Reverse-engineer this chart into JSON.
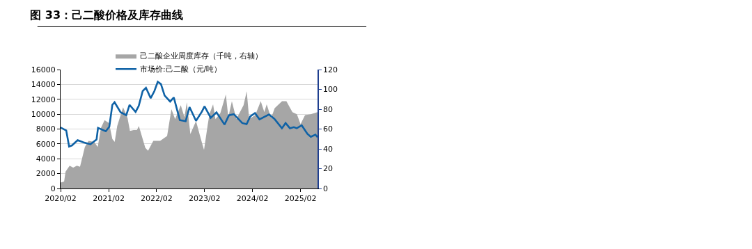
{
  "chart_data": {
    "type": "line",
    "title": "图 33：己二酸价格及库存曲线",
    "series": [
      {
        "name": "己二酸企业周度库存（千吨，右轴）",
        "type": "area",
        "axis": "y2",
        "color": "#a6a6a6",
        "x": [
          "2020-02-01",
          "2020-02-28",
          "2020-03-10",
          "2020-04-10",
          "2020-05-07",
          "2020-06-04",
          "2020-06-28",
          "2020-08-04",
          "2020-09-01",
          "2020-10-13",
          "2020-11-10",
          "2020-12-04",
          "2021-01-01",
          "2021-02-04",
          "2021-03-01",
          "2021-03-19",
          "2021-04-07",
          "2021-05-22",
          "2021-06-25",
          "2021-07-13",
          "2021-08-10",
          "2021-09-04",
          "2021-09-19",
          "2021-11-07",
          "2021-11-28",
          "2022-01-07",
          "2022-02-28",
          "2022-04-22",
          "2022-05-25",
          "2022-06-22",
          "2022-08-04",
          "2022-09-01",
          "2022-09-19",
          "2022-10-16",
          "2022-11-28",
          "2023-01-04",
          "2023-01-28",
          "2023-02-25",
          "2023-03-10",
          "2023-04-07",
          "2023-04-25",
          "2023-06-01",
          "2023-07-13",
          "2023-08-01",
          "2023-08-28",
          "2023-10-01",
          "2023-11-25",
          "2023-12-19",
          "2024-01-07",
          "2024-02-22",
          "2024-04-04",
          "2024-05-01",
          "2024-05-19",
          "2024-06-22",
          "2024-07-19",
          "2024-09-13",
          "2024-10-16",
          "2024-12-01",
          "2025-01-04",
          "2025-02-01",
          "2025-03-07",
          "2025-04-19",
          "2025-06-10"
        ],
        "values": [
          6,
          7,
          17,
          23,
          21,
          23,
          22,
          42,
          48,
          47,
          42,
          61,
          69,
          66,
          50,
          47,
          63,
          82,
          71,
          58,
          59,
          59,
          63,
          41,
          38,
          48,
          48,
          53,
          80,
          70,
          84,
          72,
          87,
          55,
          68,
          50,
          39,
          64,
          75,
          85,
          70,
          76,
          95,
          72,
          88,
          70,
          84,
          98,
          70,
          74,
          88,
          77,
          85,
          71,
          81,
          88,
          88,
          77,
          75,
          65,
          74,
          75,
          77
        ]
      },
      {
        "name": "市场价:己二酸（元/吨）",
        "color": "#0f62a6",
        "x": [
          "2020-02-01",
          "2020-03-15",
          "2020-04-06",
          "2020-04-28",
          "2020-06-10",
          "2020-07-25",
          "2020-09-15",
          "2020-11-01",
          "2020-11-12",
          "2021-01-10",
          "2021-02-06",
          "2021-03-01",
          "2021-03-18",
          "2021-05-03",
          "2021-06-15",
          "2021-07-10",
          "2021-08-25",
          "2021-09-18",
          "2021-10-18",
          "2021-11-12",
          "2021-12-18",
          "2022-01-15",
          "2022-02-10",
          "2022-03-06",
          "2022-04-03",
          "2022-05-15",
          "2022-06-12",
          "2022-07-28",
          "2022-09-10",
          "2022-10-10",
          "2022-11-28",
          "2023-01-12",
          "2023-02-01",
          "2023-03-20",
          "2023-05-03",
          "2023-07-03",
          "2023-08-06",
          "2023-09-12",
          "2023-11-15",
          "2023-12-18",
          "2024-01-15",
          "2024-02-20",
          "2024-03-25",
          "2024-06-06",
          "2024-07-18",
          "2024-09-12",
          "2024-10-10",
          "2024-11-12",
          "2024-12-12",
          "2025-01-03",
          "2025-02-10",
          "2025-03-25",
          "2025-04-20",
          "2025-05-25",
          "2025-06-10"
        ],
        "values": [
          8200,
          7800,
          5650,
          5800,
          6500,
          6200,
          5950,
          6600,
          8150,
          7700,
          8300,
          11250,
          11600,
          10250,
          9850,
          11250,
          10300,
          11100,
          13100,
          13550,
          12150,
          13100,
          14350,
          14050,
          12500,
          11700,
          12250,
          9200,
          9050,
          10950,
          9100,
          10350,
          11050,
          9500,
          10250,
          8600,
          9850,
          10000,
          8800,
          8650,
          9700,
          10150,
          9300,
          9950,
          9350,
          8100,
          8800,
          8100,
          8250,
          8100,
          8500,
          7350,
          6950,
          7250,
          6900
        ]
      }
    ],
    "xlim": [
      "2020-02-01",
      "2025-06-10"
    ],
    "xticks": [
      {
        "value": "2020-02-01",
        "label": "2020/02"
      },
      {
        "value": "2021-02-01",
        "label": "2021/02"
      },
      {
        "value": "2022-02-01",
        "label": "2022/02"
      },
      {
        "value": "2023-02-01",
        "label": "2023/02"
      },
      {
        "value": "2024-02-01",
        "label": "2024/02"
      },
      {
        "value": "2025-02-01",
        "label": "2025/02"
      }
    ],
    "ylim": [
      0,
      16000
    ],
    "yticks": [
      0,
      2000,
      4000,
      6000,
      8000,
      10000,
      12000,
      14000,
      16000
    ],
    "y2lim": [
      0,
      120
    ],
    "y2ticks": [
      0,
      20,
      40,
      60,
      80,
      100,
      120
    ],
    "grid": "y",
    "legend": "top",
    "marker": "none",
    "line_style": "solid"
  }
}
